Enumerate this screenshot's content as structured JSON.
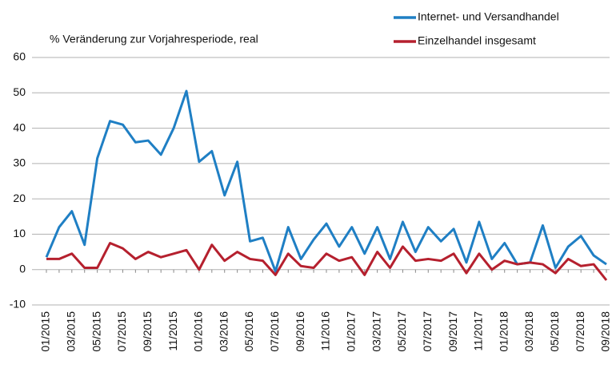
{
  "chart_data": {
    "type": "line",
    "y_label": "% Veränderung zur Vorjahresperiode, real",
    "categories": [
      "01/2015",
      null,
      "03/2015",
      null,
      "05/2015",
      null,
      "07/2015",
      null,
      "09/2015",
      null,
      "11/2015",
      null,
      "01/2016",
      null,
      "03/2016",
      null,
      "05/2016",
      null,
      "07/2016",
      null,
      "09/2016",
      null,
      "11/2016",
      null,
      "01/2017",
      null,
      "03/2017",
      null,
      "05/2017",
      null,
      "07/2017",
      null,
      "09/2017",
      null,
      "11/2017",
      null,
      "01/2018",
      null,
      "03/2018",
      null,
      "05/2018",
      null,
      "07/2018",
      null,
      "09/2018"
    ],
    "series": [
      {
        "name": "Internet- und Versandhandel",
        "color": "#1f7fc4",
        "values": [
          3.5,
          12,
          16.5,
          7,
          31.5,
          42,
          41,
          36,
          36.5,
          32.5,
          40,
          50.5,
          30.5,
          33.5,
          21,
          30.5,
          8,
          9,
          -0.5,
          12,
          3,
          8.5,
          13,
          6.5,
          12,
          4.5,
          12,
          3,
          13.5,
          5,
          12,
          8,
          11.5,
          2,
          13.5,
          3,
          7.5,
          1.5,
          2,
          12.5,
          0.5,
          6.5,
          9.5,
          4,
          1.5
        ]
      },
      {
        "name": "Einzelhandel insgesamt",
        "color": "#b5202e",
        "values": [
          3,
          3,
          4.5,
          0.5,
          0.5,
          7.5,
          6,
          3,
          5,
          3.5,
          4.5,
          5.5,
          0,
          7,
          2.5,
          5,
          3,
          2.5,
          -1.5,
          4.5,
          1,
          0.5,
          4.5,
          2.5,
          3.5,
          -1.5,
          5,
          0.5,
          6.5,
          2.5,
          3,
          2.5,
          4.5,
          -1,
          4.5,
          0,
          2.5,
          1.5,
          2,
          1.5,
          -1,
          3,
          1,
          1.5,
          -3
        ]
      }
    ],
    "ylim": [
      -10,
      60
    ],
    "yticks": [
      -10,
      0,
      10,
      20,
      30,
      40,
      50,
      60
    ],
    "grid": true,
    "legend": "top-right"
  }
}
